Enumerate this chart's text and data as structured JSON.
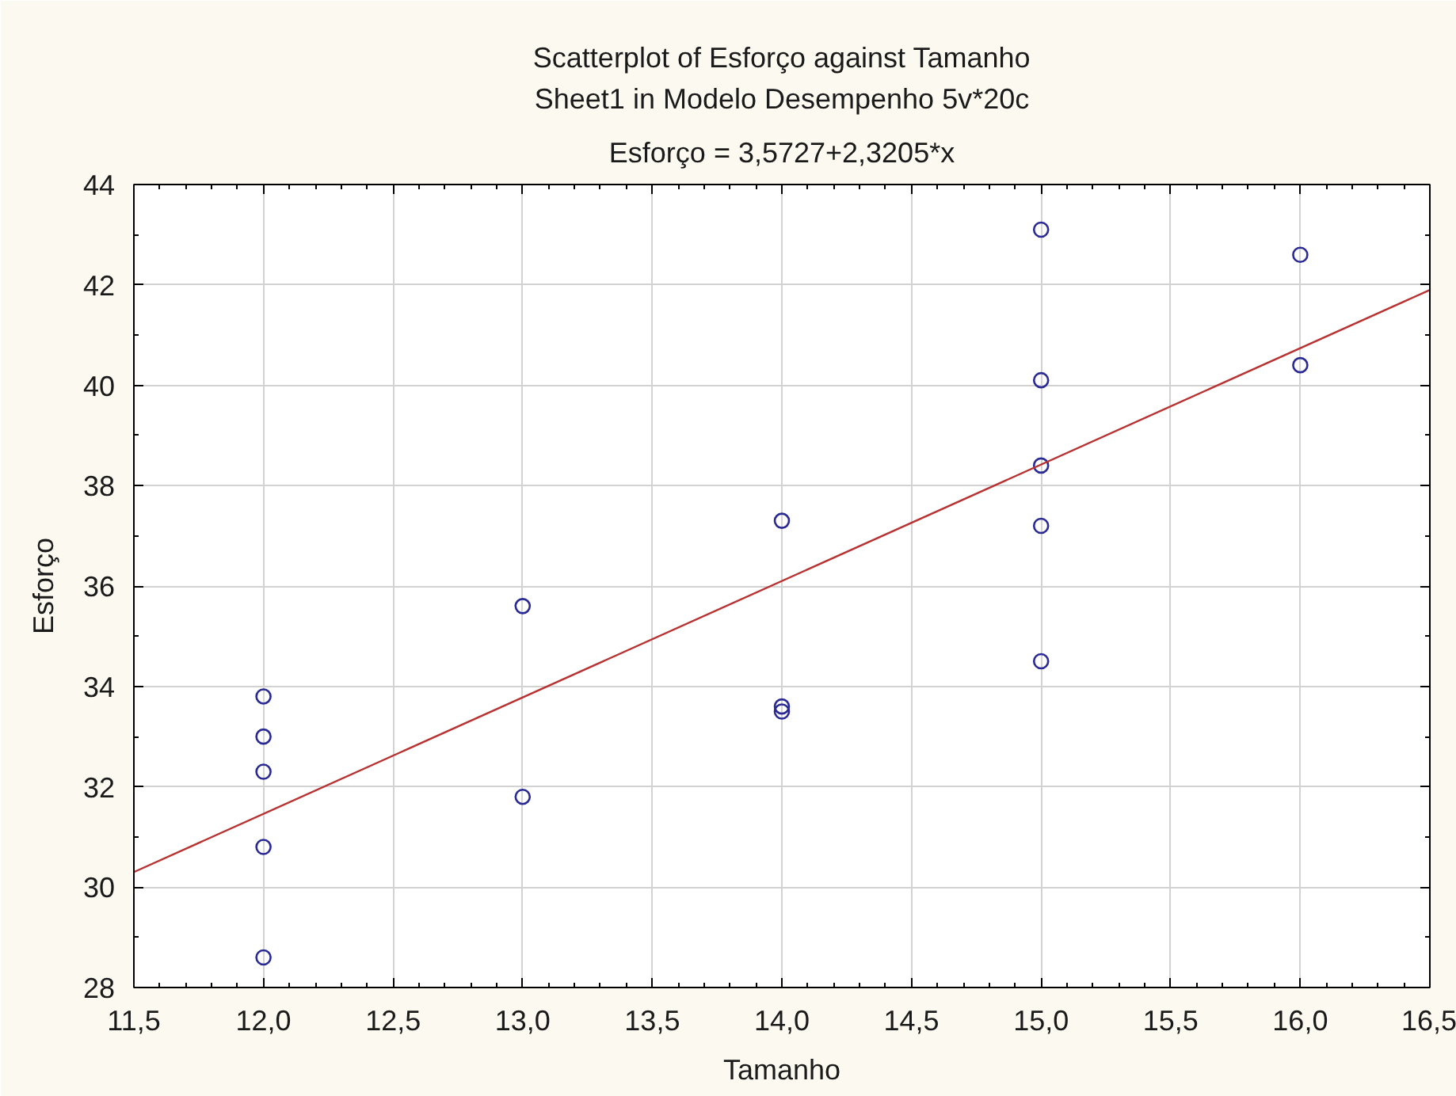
{
  "chart_data": {
    "type": "scatter",
    "title": "Scatterplot of Esforço against Tamanho",
    "subtitle": "Sheet1 in Modelo Desempenho 5v*20c",
    "annotations": [
      "Esforço = 3,5727+2,3205*x"
    ],
    "xlabel": "Tamanho",
    "ylabel": "Esforço",
    "xlim": [
      11.5,
      16.5
    ],
    "ylim": [
      28,
      44
    ],
    "xticks": [
      {
        "value": 11.5,
        "label": "11,5"
      },
      {
        "value": 12,
        "label": "12,0"
      },
      {
        "value": 12.5,
        "label": "12,5"
      },
      {
        "value": 13,
        "label": "13,0"
      },
      {
        "value": 13.5,
        "label": "13,5"
      },
      {
        "value": 14,
        "label": "14,0"
      },
      {
        "value": 14.5,
        "label": "14,5"
      },
      {
        "value": 15,
        "label": "15,0"
      },
      {
        "value": 15.5,
        "label": "15,5"
      },
      {
        "value": 16,
        "label": "16,0"
      },
      {
        "value": 16.5,
        "label": "16,5"
      }
    ],
    "yticks": [
      28,
      30,
      32,
      34,
      36,
      38,
      40,
      42,
      44
    ],
    "grid": true,
    "series": [
      {
        "color": "#2a2a96",
        "marker": "circle",
        "x": [
          12,
          12,
          12,
          12,
          12,
          13,
          13,
          14,
          14,
          14,
          15,
          15,
          15,
          15,
          15,
          16,
          16
        ],
        "values": [
          33.8,
          33.0,
          32.3,
          30.8,
          28.6,
          31.8,
          35.6,
          37.3,
          33.6,
          33.5,
          43.1,
          40.1,
          38.4,
          37.2,
          34.5,
          42.6,
          40.4
        ]
      },
      {
        "type": "line",
        "color": "#b83232",
        "x": [
          11.5,
          16.5
        ],
        "values": [
          30.3,
          41.9
        ]
      }
    ]
  }
}
